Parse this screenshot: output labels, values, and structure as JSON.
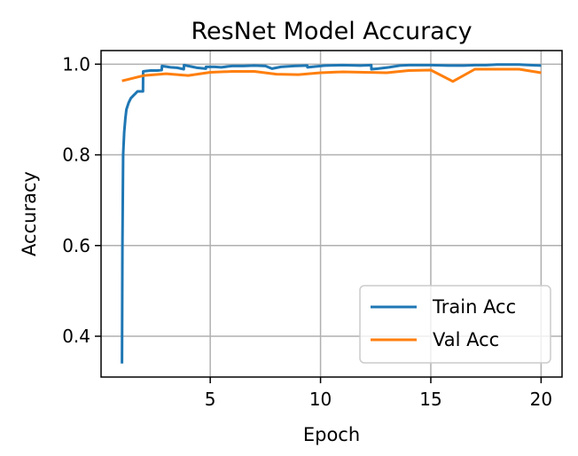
{
  "chart_data": {
    "type": "line",
    "title": "ResNet Model Accuracy",
    "xlabel": "Epoch",
    "ylabel": "Accuracy",
    "xlim": [
      0.05,
      20.95
    ],
    "ylim": [
      0.31,
      1.03
    ],
    "xticks": [
      5,
      10,
      15,
      20
    ],
    "yticks": [
      0.4,
      0.6,
      0.8,
      1.0
    ],
    "xtick_labels": [
      "5",
      "10",
      "15",
      "20"
    ],
    "ytick_labels": [
      "0.4",
      "0.6",
      "0.8",
      "1.0"
    ],
    "grid": true,
    "legend_position": "lower-right",
    "series": [
      {
        "name": "Train Acc",
        "color": "#1f77b4",
        "x": [
          1.0,
          1.02,
          1.05,
          1.1,
          1.15,
          1.2,
          1.3,
          1.4,
          1.5,
          1.6,
          1.7,
          1.8,
          1.9,
          1.95,
          1.96,
          2.1,
          2.3,
          2.6,
          2.8,
          2.81,
          3.2,
          3.5,
          3.8,
          3.81,
          4.4,
          4.8,
          4.81,
          5.2,
          5.5,
          5.8,
          6.0,
          6.5,
          7.0,
          7.5,
          7.8,
          8.2,
          8.8,
          9.4,
          9.41,
          10.2,
          11.0,
          11.8,
          12.3,
          12.31,
          12.6,
          13.1,
          13.6,
          14.0,
          14.4,
          15.0,
          15.8,
          16.5,
          17.0,
          17.5,
          18.0,
          18.5,
          19.0,
          19.5,
          20.0
        ],
        "y": [
          0.34,
          0.6,
          0.8,
          0.85,
          0.88,
          0.9,
          0.915,
          0.925,
          0.93,
          0.935,
          0.94,
          0.94,
          0.94,
          0.94,
          0.984,
          0.985,
          0.986,
          0.986,
          0.987,
          0.996,
          0.993,
          0.992,
          0.989,
          0.998,
          0.992,
          0.99,
          0.994,
          0.994,
          0.993,
          0.995,
          0.996,
          0.996,
          0.997,
          0.996,
          0.99,
          0.994,
          0.996,
          0.997,
          0.993,
          0.997,
          0.998,
          0.997,
          0.998,
          0.989,
          0.99,
          0.993,
          0.997,
          0.998,
          0.998,
          0.998,
          0.997,
          0.997,
          0.998,
          0.998,
          0.999,
          0.999,
          0.999,
          0.998,
          0.997
        ]
      },
      {
        "name": "Val Acc",
        "color": "#ff7f0e",
        "x": [
          1,
          2,
          3,
          4,
          5,
          6,
          7,
          8,
          9,
          10,
          11,
          12,
          13,
          14,
          15,
          16,
          17,
          18,
          19,
          20
        ],
        "y": [
          0.963,
          0.975,
          0.979,
          0.975,
          0.982,
          0.984,
          0.984,
          0.978,
          0.977,
          0.981,
          0.983,
          0.982,
          0.981,
          0.986,
          0.987,
          0.962,
          0.989,
          0.989,
          0.989,
          0.981
        ]
      }
    ]
  }
}
